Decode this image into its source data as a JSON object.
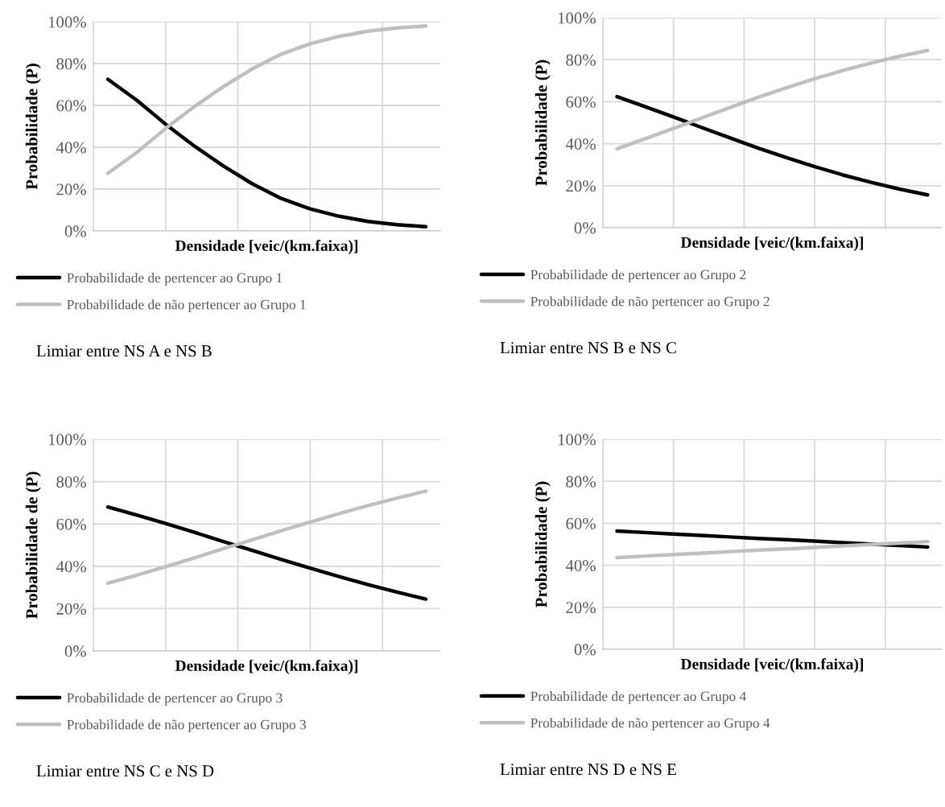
{
  "chart_data": [
    {
      "type": "line",
      "xlabel": "Densidade [veic/(km.faixa)]",
      "ylabel": "Probabilidade (P)",
      "categories": [
        null,
        null,
        null,
        null,
        null,
        null,
        null,
        null,
        null,
        null,
        null,
        null
      ],
      "ylim": [
        0,
        100
      ],
      "yticks": [
        {
          "value": 0,
          "label": "0%"
        },
        {
          "value": 20,
          "label": "20%"
        },
        {
          "value": 40,
          "label": "40%"
        },
        {
          "value": 60,
          "label": "60%"
        },
        {
          "value": 80,
          "label": "80%"
        },
        {
          "value": 100,
          "label": "100%"
        }
      ],
      "grid": true,
      "legend": "bottom",
      "marker": "none",
      "line_style": "solid",
      "annotations": [
        "Limiar entre NS A e NS B"
      ],
      "series": [
        {
          "name": "Probabilidade de pertencer ao Grupo 1",
          "color": "#000000",
          "values": [
            72.5,
            62.5,
            51,
            40.5,
            31,
            22.5,
            15.5,
            10.5,
            7,
            4.5,
            3,
            2
          ]
        },
        {
          "name": "Probabilidade de não pertencer ao Grupo 1",
          "color": "#bfbfbf",
          "values": [
            27.5,
            37.5,
            49,
            59.5,
            69,
            77.5,
            84.5,
            89.5,
            93,
            95.5,
            97,
            98
          ]
        }
      ]
    },
    {
      "type": "line",
      "xlabel": "Densidade [veic/(km.faixa)]",
      "ylabel": "Probabilidade (P)",
      "categories": [
        null,
        null,
        null,
        null,
        null,
        null,
        null,
        null,
        null,
        null,
        null,
        null
      ],
      "ylim": [
        0,
        100
      ],
      "yticks": [
        {
          "value": 0,
          "label": "0%"
        },
        {
          "value": 20,
          "label": "20%"
        },
        {
          "value": 40,
          "label": "40%"
        },
        {
          "value": 60,
          "label": "60%"
        },
        {
          "value": 80,
          "label": "80%"
        },
        {
          "value": 100,
          "label": "100%"
        }
      ],
      "grid": true,
      "legend": "bottom",
      "marker": "none",
      "line_style": "solid",
      "annotations": [
        "Limiar entre NS B e NS C"
      ],
      "series": [
        {
          "name": "Probabilidade de pertencer ao Grupo 2",
          "color": "#000000",
          "values": [
            62.4,
            57.6,
            52.7,
            47.7,
            42.8,
            37.9,
            33.4,
            29.1,
            25.1,
            21.6,
            18.4,
            15.6
          ]
        },
        {
          "name": "Probabilidade de não pertencer ao Grupo 2",
          "color": "#bfbfbf",
          "values": [
            37.6,
            42.4,
            47.3,
            52.3,
            57.2,
            62.1,
            66.6,
            70.9,
            74.9,
            78.4,
            81.6,
            84.4
          ]
        }
      ]
    },
    {
      "type": "line",
      "xlabel": "Densidade [veic/(km.faixa)]",
      "ylabel": "Probabilidade de (P)",
      "categories": [
        null,
        null,
        null,
        null,
        null,
        null,
        null,
        null,
        null,
        null,
        null,
        null
      ],
      "ylim": [
        0,
        100
      ],
      "yticks": [
        {
          "value": 0,
          "label": "0%"
        },
        {
          "value": 20,
          "label": "20%"
        },
        {
          "value": 40,
          "label": "40%"
        },
        {
          "value": 60,
          "label": "60%"
        },
        {
          "value": 80,
          "label": "80%"
        },
        {
          "value": 100,
          "label": "100%"
        }
      ],
      "grid": true,
      "legend": "bottom",
      "marker": "none",
      "line_style": "solid",
      "annotations": [
        "Limiar entre NS C e NS D"
      ],
      "series": [
        {
          "name": "Probabilidade de pertencer ao Grupo 3",
          "color": "#000000",
          "values": [
            68.0,
            64.2,
            60.2,
            56.0,
            51.7,
            47.5,
            43.2,
            39.1,
            35.1,
            31.3,
            27.8,
            24.5
          ]
        },
        {
          "name": "Probabilidade de não pertencer ao Grupo 3",
          "color": "#bfbfbf",
          "values": [
            32.0,
            35.8,
            39.8,
            44.0,
            48.3,
            52.5,
            56.8,
            60.9,
            64.9,
            68.7,
            72.2,
            75.5
          ]
        }
      ]
    },
    {
      "type": "line",
      "xlabel": "Densidade [veic/(km.faixa)]",
      "ylabel": "Probabilidade (P)",
      "categories": [
        null,
        null,
        null,
        null,
        null,
        null,
        null,
        null,
        null,
        null,
        null,
        null
      ],
      "ylim": [
        0,
        100
      ],
      "yticks": [
        {
          "value": 0,
          "label": "0%"
        },
        {
          "value": 20,
          "label": "20%"
        },
        {
          "value": 40,
          "label": "40%"
        },
        {
          "value": 60,
          "label": "60%"
        },
        {
          "value": 80,
          "label": "80%"
        },
        {
          "value": 100,
          "label": "100%"
        }
      ],
      "grid": true,
      "legend": "bottom",
      "marker": "none",
      "line_style": "solid",
      "annotations": [
        "Limiar entre NS D e NS E"
      ],
      "series": [
        {
          "name": "Probabilidade de pertencer ao Grupo 4",
          "color": "#000000",
          "values": [
            56.3,
            55.6,
            54.9,
            54.2,
            53.5,
            52.8,
            52.2,
            51.5,
            50.8,
            50.1,
            49.4,
            48.7
          ]
        },
        {
          "name": "Probabilidade de não pertencer ao Grupo 4",
          "color": "#bfbfbf",
          "values": [
            43.7,
            44.4,
            45.1,
            45.8,
            46.5,
            47.2,
            47.8,
            48.5,
            49.2,
            49.9,
            50.6,
            51.3
          ]
        }
      ]
    }
  ]
}
